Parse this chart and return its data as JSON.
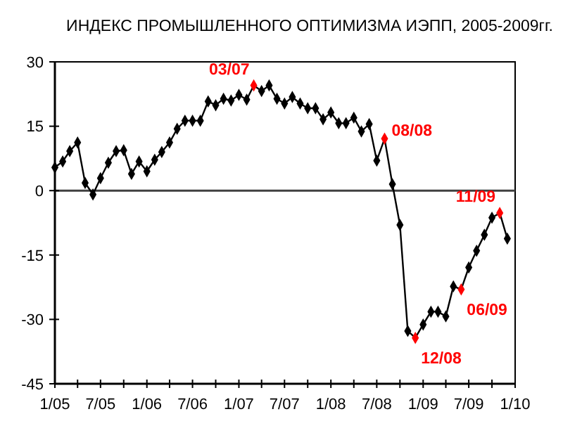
{
  "chart_data": {
    "type": "line",
    "title": "ИНДЕКС ПРОМЫШЛЕННОГО ОПТИМИЗМА ИЭПП, 2005-2009гг.",
    "x": [
      "2005-01",
      "2005-02",
      "2005-03",
      "2005-04",
      "2005-05",
      "2005-06",
      "2005-07",
      "2005-08",
      "2005-09",
      "2005-10",
      "2005-11",
      "2005-12",
      "2006-01",
      "2006-02",
      "2006-03",
      "2006-04",
      "2006-05",
      "2006-06",
      "2006-07",
      "2006-08",
      "2006-09",
      "2006-10",
      "2006-11",
      "2006-12",
      "2007-01",
      "2007-02",
      "2007-03",
      "2007-04",
      "2007-05",
      "2007-06",
      "2007-07",
      "2007-08",
      "2007-09",
      "2007-10",
      "2007-11",
      "2007-12",
      "2008-01",
      "2008-02",
      "2008-03",
      "2008-04",
      "2008-05",
      "2008-06",
      "2008-07",
      "2008-08",
      "2008-09",
      "2008-10",
      "2008-11",
      "2008-12",
      "2009-01",
      "2009-02",
      "2009-03",
      "2009-04",
      "2009-05",
      "2009-06",
      "2009-07",
      "2009-08",
      "2009-09",
      "2009-10",
      "2009-11",
      "2009-12"
    ],
    "series": [
      {
        "color": "#000000",
        "values": [
          5.4,
          6.8,
          9.2,
          11.2,
          1.8,
          -0.9,
          2.9,
          6.5,
          9.2,
          9.4,
          3.9,
          6.8,
          4.5,
          7.2,
          9.0,
          11.2,
          14.4,
          16.3,
          16.3,
          16.3,
          20.8,
          19.9,
          21.4,
          21.0,
          22.3,
          21.2,
          24.5,
          23.2,
          24.5,
          21.4,
          20.3,
          21.8,
          20.3,
          19.2,
          19.2,
          16.6,
          18.2,
          15.7,
          15.7,
          17.0,
          13.8,
          15.5,
          7.0,
          12.1,
          1.5,
          -8.0,
          -32.7,
          -34.3,
          -31.2,
          -28.2,
          -28.2,
          -29.3,
          -22.3,
          -23.0,
          -17.9,
          -14.0,
          -10.3,
          -6.3,
          -5.2,
          -11.2
        ],
        "colors": [
          "#000000",
          "#000000",
          "#000000",
          "#000000",
          "#000000",
          "#000000",
          "#000000",
          "#000000",
          "#000000",
          "#000000",
          "#000000",
          "#000000",
          "#000000",
          "#000000",
          "#000000",
          "#000000",
          "#000000",
          "#000000",
          "#000000",
          "#000000",
          "#000000",
          "#000000",
          "#000000",
          "#000000",
          "#000000",
          "#000000",
          "#ff0000",
          "#000000",
          "#000000",
          "#000000",
          "#000000",
          "#000000",
          "#000000",
          "#000000",
          "#000000",
          "#000000",
          "#000000",
          "#000000",
          "#000000",
          "#000000",
          "#000000",
          "#000000",
          "#000000",
          "#ff0000",
          "#000000",
          "#000000",
          "#000000",
          "#ff0000",
          "#000000",
          "#000000",
          "#000000",
          "#000000",
          "#000000",
          "#ff0000",
          "#000000",
          "#000000",
          "#000000",
          "#000000",
          "#ff0000",
          "#000000"
        ]
      }
    ],
    "xlim": [
      "2005-01",
      "2010-01"
    ],
    "xticks": [
      {
        "value": "2005-01",
        "label": "1/05"
      },
      {
        "value": "2005-04",
        "label": null
      },
      {
        "value": "2005-07",
        "label": "7/05"
      },
      {
        "value": "2005-10",
        "label": null
      },
      {
        "value": "2006-01",
        "label": "1/06"
      },
      {
        "value": "2006-04",
        "label": null
      },
      {
        "value": "2006-07",
        "label": "7/06"
      },
      {
        "value": "2006-10",
        "label": null
      },
      {
        "value": "2007-01",
        "label": "1/07"
      },
      {
        "value": "2007-04",
        "label": null
      },
      {
        "value": "2007-07",
        "label": "7/07"
      },
      {
        "value": "2007-10",
        "label": null
      },
      {
        "value": "2008-01",
        "label": "1/08"
      },
      {
        "value": "2008-04",
        "label": null
      },
      {
        "value": "2008-07",
        "label": "7/08"
      },
      {
        "value": "2008-10",
        "label": null
      },
      {
        "value": "2009-01",
        "label": "1/09"
      },
      {
        "value": "2009-04",
        "label": null
      },
      {
        "value": "2009-07",
        "label": "7/09"
      },
      {
        "value": "2009-10",
        "label": null
      },
      {
        "value": "2010-01",
        "label": "1/10"
      }
    ],
    "ylim": [
      -45,
      30
    ],
    "yticks": [
      -45,
      -30,
      -15,
      0,
      15,
      30
    ],
    "ref_lines": [
      {
        "axis": "y",
        "value": 0,
        "color": "#404040"
      }
    ],
    "annotations": [
      {
        "text": "03/07",
        "x": "2007-03",
        "y": 24.5
      },
      {
        "text": "08/08",
        "x": "2008-08",
        "y": 12.1
      },
      {
        "text": "12/08",
        "x": "2008-12",
        "y": -34.3
      },
      {
        "text": "06/09",
        "x": "2009-06",
        "y": -23.0
      },
      {
        "text": "11/09",
        "x": "2009-11",
        "y": -5.2
      }
    ],
    "marker": "diamond",
    "line_style": "solid",
    "grid": false
  }
}
